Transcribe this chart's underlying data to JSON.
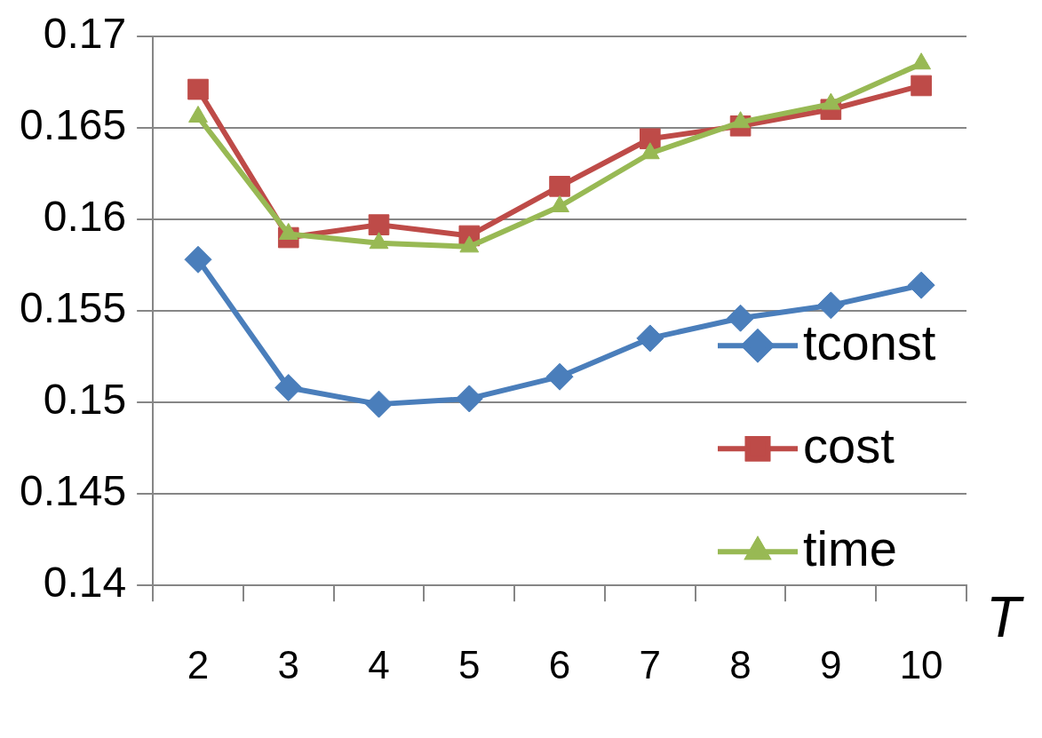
{
  "chart_data": {
    "type": "line",
    "xlabel": "T",
    "categories": [
      "2",
      "3",
      "4",
      "5",
      "6",
      "7",
      "8",
      "9",
      "10"
    ],
    "series": [
      {
        "name": "tconst",
        "color": "#4a7ebb",
        "marker": "diamond",
        "values": [
          0.1578,
          0.1508,
          0.1499,
          0.1502,
          0.1514,
          0.1535,
          0.1546,
          0.1553,
          0.1564
        ]
      },
      {
        "name": "cost",
        "color": "#be4b48",
        "marker": "square",
        "values": [
          0.1671,
          0.159,
          0.1597,
          0.1591,
          0.1618,
          0.1644,
          0.1651,
          0.166,
          0.1673
        ]
      },
      {
        "name": "time",
        "color": "#98b954",
        "marker": "triangle",
        "values": [
          0.1656,
          0.1592,
          0.1587,
          0.1585,
          0.1607,
          0.1636,
          0.1653,
          0.1663,
          0.1685
        ]
      }
    ],
    "ylim": [
      0.14,
      0.17
    ],
    "yticks": [
      0.14,
      0.145,
      0.15,
      0.155,
      0.16,
      0.165,
      0.17
    ],
    "grid": "y",
    "legend": "bottom right",
    "line_style": "solid"
  }
}
